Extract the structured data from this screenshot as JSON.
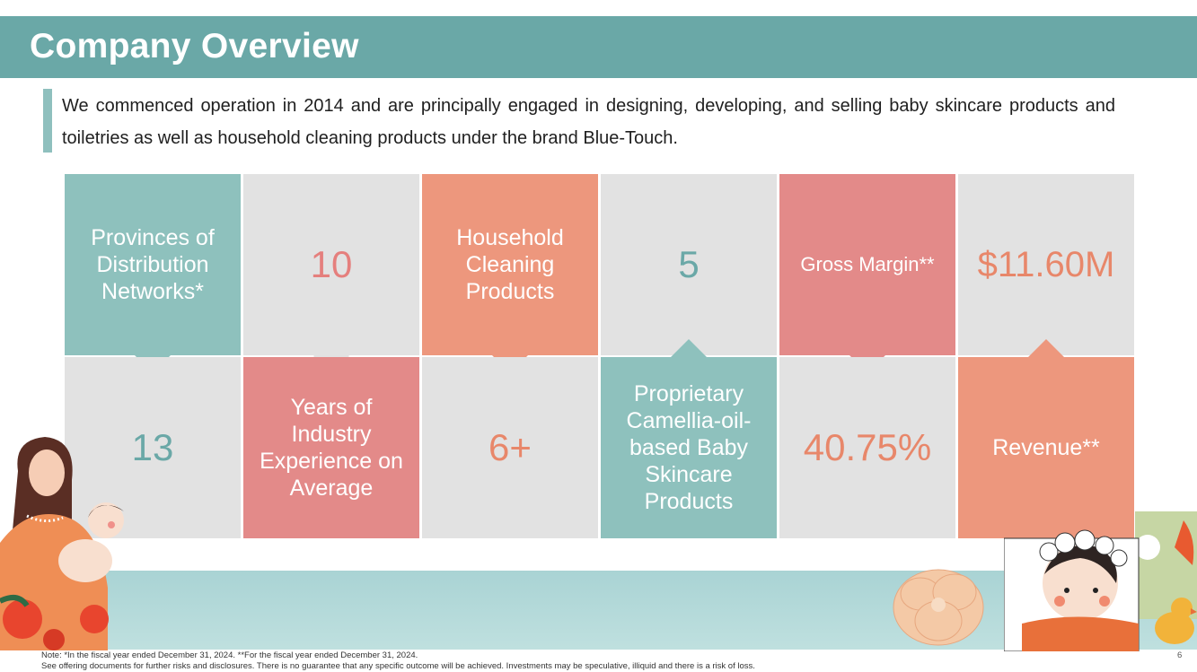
{
  "header": {
    "title": "Company Overview"
  },
  "intro": "We commenced operation in 2014 and are principally engaged in designing, developing, and selling baby skincare products and toiletries as well as household cleaning products under the brand Blue-Touch.",
  "tiles": {
    "provinces_label": "Provinces of Distribution Networks*",
    "provinces_value": "13",
    "years_value": "10",
    "years_label": "Years of Industry Experience on Average",
    "household_label": "Household Cleaning Products",
    "household_value": "6+",
    "skincare_value": "5",
    "skincare_label": "Proprietary Camellia-oil-based Baby Skincare Products",
    "margin_label": "Gross Margin**",
    "margin_value": "40.75%",
    "revenue_value": "$11.60M",
    "revenue_label": "Revenue**"
  },
  "footer": {
    "note_line1": "Note: *In the fiscal year ended December 31, 2024. **For the fiscal year ended December 31, 2024.",
    "note_line2": "See offering documents for further risks and disclosures. There is no guarantee that any specific outcome will be achieved. Investments may be speculative, illiquid and there is a risk of loss.",
    "page_number": "6"
  },
  "colors": {
    "teal": "#8ec1bd",
    "salmon": "#ed977d",
    "rose": "#e38a89",
    "gray": "#e2e2e2",
    "header": "#6aa8a7"
  }
}
